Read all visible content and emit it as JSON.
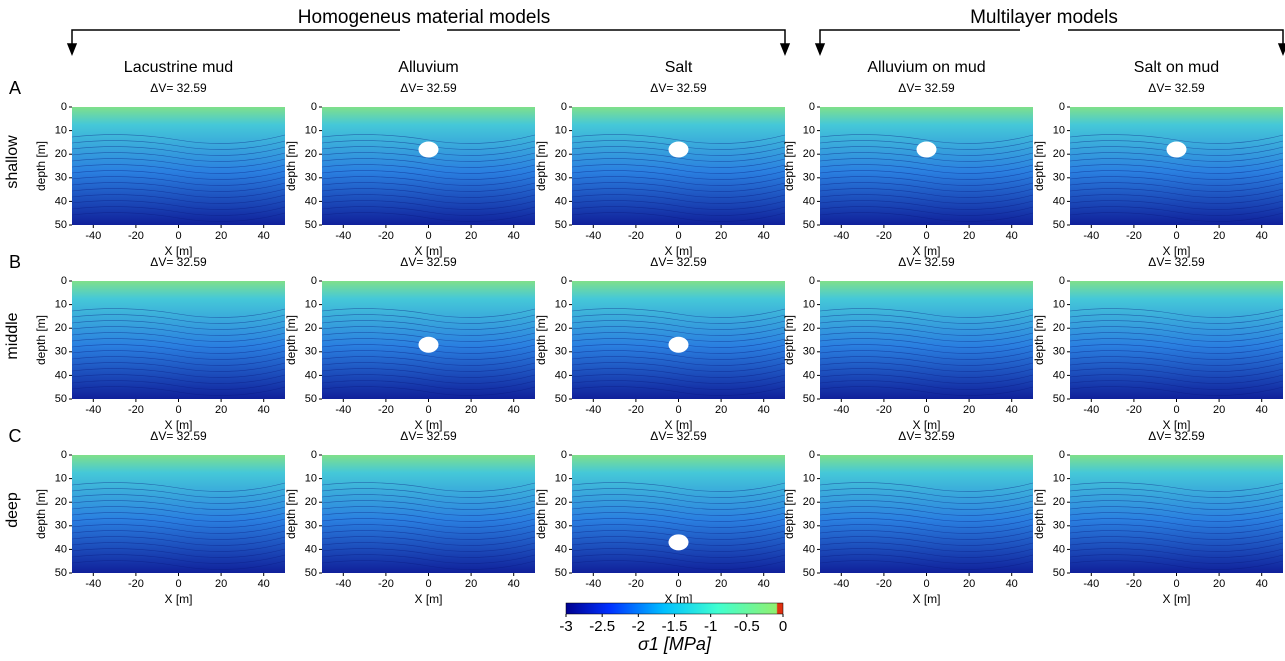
{
  "groups": [
    {
      "label": "Homogeneus material models"
    },
    {
      "label": "Multilayer models"
    }
  ],
  "columns": [
    "Lacustrine mud",
    "Alluvium",
    "Salt",
    "Alluvium on mud",
    "Salt on mud"
  ],
  "rows": [
    {
      "letter": "A",
      "label": "shallow"
    },
    {
      "letter": "B",
      "label": "middle"
    },
    {
      "letter": "C",
      "label": "deep"
    }
  ],
  "panel_title": "ΔV= 32.59",
  "axes": {
    "xlabel": "X [m]",
    "ylabel": "depth [m]",
    "xlim": [
      -50,
      50
    ],
    "ylim": [
      0,
      50
    ],
    "xticks": [
      -40,
      -20,
      0,
      20,
      40
    ],
    "yticks": [
      0,
      10,
      20,
      30,
      40,
      50
    ]
  },
  "colorbar": {
    "label": "σ1 [MPa]",
    "lim": [
      -3,
      0
    ],
    "ticks": [
      -3,
      -2.5,
      -2,
      -1.5,
      -1,
      -0.5,
      0
    ]
  }
}
